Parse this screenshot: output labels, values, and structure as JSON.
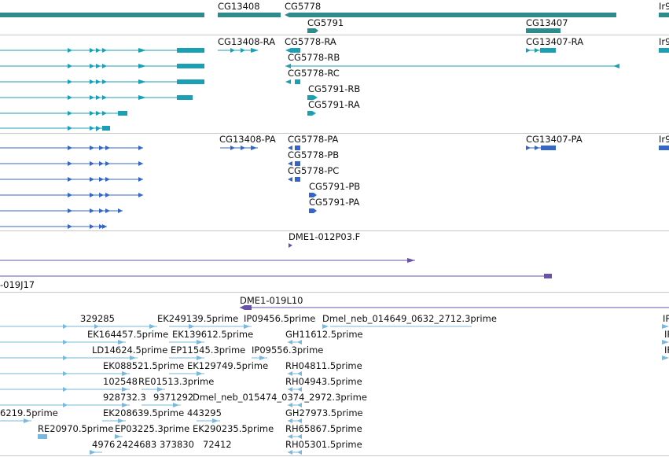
{
  "colors": {
    "gene": "#2e8b8b",
    "mrna": "#1a9fb5",
    "cds": "#3366c8",
    "clone": "#6a52a8",
    "est": "#7ab8de",
    "separator": "#c8c8c8"
  },
  "tracks": {
    "genes": {
      "features": [
        {
          "id": "g0",
          "label": "",
          "strand": "+"
        },
        {
          "id": "g1",
          "label": "CG13408",
          "strand": "+"
        },
        {
          "id": "g2",
          "label": "CG5778",
          "strand": "-"
        },
        {
          "id": "g3",
          "label": "CG5791",
          "strand": "+"
        },
        {
          "id": "g4",
          "label": "CG13407",
          "strand": "+"
        },
        {
          "id": "g5",
          "label": "Ir9",
          "strand": "+"
        }
      ]
    },
    "transcripts": {
      "features": [
        {
          "label": "CG13408-RA"
        },
        {
          "label": "CG5778-RA"
        },
        {
          "label": "CG5778-RB"
        },
        {
          "label": "CG5778-RC"
        },
        {
          "label": "CG5791-RB"
        },
        {
          "label": "CG5791-RA"
        },
        {
          "label": "CG13407-RA"
        },
        {
          "label": "Ir9"
        }
      ]
    },
    "proteins": {
      "features": [
        {
          "label": "CG13408-PA"
        },
        {
          "label": "CG5778-PA"
        },
        {
          "label": "CG5778-PB"
        },
        {
          "label": "CG5778-PC"
        },
        {
          "label": "CG5791-PB"
        },
        {
          "label": "CG5791-PA"
        },
        {
          "label": "CG13407-PA"
        },
        {
          "label": "Ir9"
        }
      ]
    },
    "clones": {
      "features": [
        {
          "label": "DME1-012P03.F"
        },
        {
          "label": "-019J17"
        },
        {
          "label": "DME1-019L10"
        }
      ]
    },
    "ests": {
      "features": [
        {
          "label": "329285"
        },
        {
          "label": "EK249139.5prime"
        },
        {
          "label": "IP09456.5prime"
        },
        {
          "label": "Dmel_neb_014649_0632_2712.3prime"
        },
        {
          "label": "IP"
        },
        {
          "label": "EK164457.5prime"
        },
        {
          "label": "EK139612.5prime"
        },
        {
          "label": "GH11612.5prime"
        },
        {
          "label": "IP"
        },
        {
          "label": "LD14624.5prime"
        },
        {
          "label": "EP11545.3prime"
        },
        {
          "label": "IP09556.3prime"
        },
        {
          "label": "IF"
        },
        {
          "label": "EK088521.5prime"
        },
        {
          "label": "EK129749.5prime"
        },
        {
          "label": "RH04811.5prime"
        },
        {
          "label": "102548"
        },
        {
          "label": "RE01513.3prime"
        },
        {
          "label": "RH04943.5prime"
        },
        {
          "label": "928732.3"
        },
        {
          "label": "9371292"
        },
        {
          "label": "Dmel_neb_015474_0374_2972.3prime"
        },
        {
          "label": "6219.5prime"
        },
        {
          "label": "EK208639.5prime"
        },
        {
          "label": "443295"
        },
        {
          "label": "GH27973.5prime"
        },
        {
          "label": "RE20970.5prime"
        },
        {
          "label": "EP03225.3prime"
        },
        {
          "label": "EK290235.5prime"
        },
        {
          "label": "RH65867.5prime"
        },
        {
          "label": "4976"
        },
        {
          "label": "2424683"
        },
        {
          "label": "373830"
        },
        {
          "label": "72412"
        },
        {
          "label": "RH05301.5prime"
        }
      ]
    }
  }
}
